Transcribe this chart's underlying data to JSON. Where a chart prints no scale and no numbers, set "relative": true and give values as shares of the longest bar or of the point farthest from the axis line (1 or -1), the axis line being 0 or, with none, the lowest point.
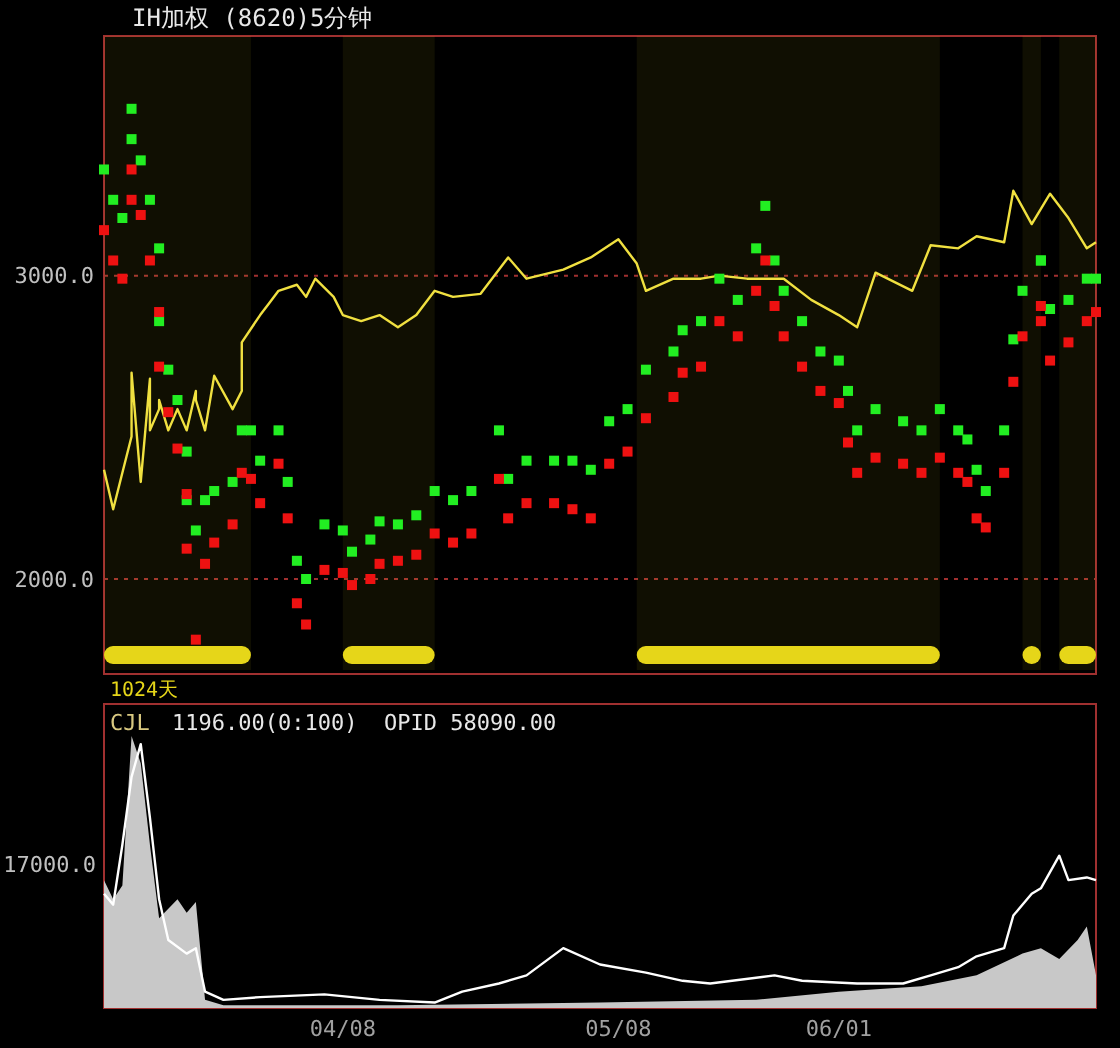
{
  "chart_data": [
    {
      "type": "scatter",
      "title": "IH加权  (8620)5分钟",
      "xlim": [
        "--03-13",
        "--06-29"
      ],
      "ylim": [
        1700,
        3790
      ],
      "yticks": [
        {
          "value": 3000,
          "label": "3000.0"
        },
        {
          "value": 2000,
          "label": "2000.0"
        }
      ],
      "grid": "y",
      "tick_labels": "y",
      "x": [
        "--03-13",
        "--03-14",
        "--03-15",
        "--03-16",
        "--03-16",
        "--03-17",
        "--03-18",
        "--03-19",
        "--03-19",
        "--03-20",
        "--03-21",
        "--03-22",
        "--03-22",
        "--03-23",
        "--03-24",
        "--03-25",
        "--03-27",
        "--03-28",
        "--03-29",
        "--03-30",
        "--04-01",
        "--04-02",
        "--04-03",
        "--04-04",
        "--04-06",
        "--04-08",
        "--04-09",
        "--04-11",
        "--04-12",
        "--04-14",
        "--04-16",
        "--04-18",
        "--04-20",
        "--04-22",
        "--04-25",
        "--04-26",
        "--04-28",
        "--05-01",
        "--05-03",
        "--05-05",
        "--05-07",
        "--05-09",
        "--05-11",
        "--05-14",
        "--05-15",
        "--05-17",
        "--05-19",
        "--05-21",
        "--05-23",
        "--05-24",
        "--05-25",
        "--05-26",
        "--05-28",
        "--05-30",
        "--06-01",
        "--06-02",
        "--06-03",
        "--06-05",
        "--06-08",
        "--06-10",
        "--06-12",
        "--06-14",
        "--06-15",
        "--06-16",
        "--06-17",
        "--06-19",
        "--06-20",
        "--06-21",
        "--06-23",
        "--06-23",
        "--06-24",
        "--06-26",
        "--06-28",
        "--06-29"
      ],
      "series": [
        {
          "type": "line",
          "color": "#f0e040",
          "x": [
            "--03-13",
            "--03-14",
            "--03-15",
            "--03-16",
            "--03-16",
            "--03-17",
            "--03-18",
            "--03-18",
            "--03-19",
            "--03-19",
            "--03-20",
            "--03-21",
            "--03-22",
            "--03-23",
            "--03-23",
            "--03-24",
            "--03-25",
            "--03-27",
            "--03-28",
            "--03-28",
            "--03-30",
            "--03-31",
            "--04-01",
            "--04-03",
            "--04-04",
            "--04-05",
            "--04-07",
            "--04-08",
            "--04-10",
            "--04-12",
            "--04-14",
            "--04-16",
            "--04-18",
            "--04-20",
            "--04-23",
            "--04-26",
            "--04-28",
            "--05-02",
            "--05-05",
            "--05-08",
            "--05-10",
            "--05-11",
            "--05-14",
            "--05-17",
            "--05-19",
            "--05-22",
            "--05-26",
            "--05-29",
            "--06-01",
            "--06-03",
            "--06-05",
            "--06-09",
            "--06-11",
            "--06-14",
            "--06-16",
            "--06-19",
            "--06-20",
            "--06-22",
            "--06-24",
            "--06-26",
            "--06-28",
            "--06-29"
          ],
          "values": [
            2360,
            2230,
            2350,
            2470,
            2680,
            2320,
            2660,
            2490,
            2560,
            2590,
            2490,
            2560,
            2490,
            2620,
            2590,
            2490,
            2670,
            2560,
            2620,
            2780,
            2870,
            2910,
            2950,
            2970,
            2930,
            2990,
            2930,
            2870,
            2850,
            2870,
            2830,
            2870,
            2950,
            2930,
            2940,
            3060,
            2990,
            3020,
            3060,
            3120,
            3040,
            2950,
            2990,
            2990,
            3000,
            2990,
            2990,
            2920,
            2870,
            2830,
            3010,
            2950,
            3100,
            3090,
            3130,
            3110,
            3280,
            3170,
            3270,
            3190,
            3090,
            3110
          ]
        },
        {
          "color": "#22ee22",
          "marker": "square",
          "values": [
            3350,
            3250,
            3190,
            3450,
            3550,
            3380,
            3250,
            3090,
            2850,
            2690,
            2590,
            2420,
            2260,
            2160,
            2260,
            2290,
            2320,
            2490,
            2490,
            2390,
            2490,
            2320,
            2060,
            2000,
            2180,
            2160,
            2090,
            2130,
            2190,
            2180,
            2210,
            2290,
            2260,
            2290,
            2490,
            2330,
            2390,
            2390,
            2390,
            2360,
            2520,
            2560,
            2690,
            2750,
            2820,
            2850,
            2990,
            2920,
            3090,
            3230,
            3050,
            2950,
            2850,
            2750,
            2720,
            2620,
            2490,
            2560,
            2520,
            2490,
            2560,
            2490,
            2460,
            2360,
            2290,
            2490,
            2790,
            2950,
            3050,
            3050,
            2890,
            2920,
            2990,
            2990
          ]
        },
        {
          "color": "#ee1111",
          "marker": "square",
          "values": [
            3150,
            3050,
            2990,
            3250,
            3350,
            3200,
            3050,
            2880,
            2700,
            2550,
            2430,
            2280,
            2100,
            1800,
            2050,
            2120,
            2180,
            2350,
            2330,
            2250,
            2380,
            2200,
            1920,
            1850,
            2030,
            2020,
            1980,
            2000,
            2050,
            2060,
            2080,
            2150,
            2120,
            2150,
            2330,
            2200,
            2250,
            2250,
            2230,
            2200,
            2380,
            2420,
            2530,
            2600,
            2680,
            2700,
            2850,
            2800,
            2950,
            3050,
            2900,
            2800,
            2700,
            2620,
            2580,
            2450,
            2350,
            2400,
            2380,
            2350,
            2400,
            2350,
            2320,
            2200,
            2170,
            2350,
            2650,
            2800,
            2900,
            2850,
            2720,
            2780,
            2850,
            2880
          ]
        }
      ],
      "bands": [
        {
          "axis": "x",
          "from": "--03-13",
          "to": "--03-29",
          "color": "#e6d619"
        },
        {
          "axis": "x",
          "from": "--04-08",
          "to": "--04-18",
          "color": "#e6d619"
        },
        {
          "axis": "x",
          "from": "--05-10",
          "to": "--06-12",
          "color": "#e6d619"
        },
        {
          "axis": "x",
          "from": "--06-21",
          "to": "--06-23",
          "color": "#e6d619"
        },
        {
          "axis": "x",
          "from": "--06-25",
          "to": "--06-29",
          "color": "#e6d619"
        }
      ],
      "annotations": [
        "1024天"
      ]
    },
    {
      "type": "area",
      "relative": true,
      "xlim": [
        "--03-13",
        "--06-29"
      ],
      "xticks": [
        {
          "value": "--04-08",
          "label": "04/08"
        },
        {
          "value": "--05-08",
          "label": "05/08"
        },
        {
          "value": "--06-01",
          "label": "06/01"
        }
      ],
      "tick_labels": "x",
      "series": [
        {
          "color": "#c8c8c8",
          "x": [
            "--03-13",
            "--03-14",
            "--03-15",
            "--03-16",
            "--03-17",
            "--03-18",
            "--03-19",
            "--03-21",
            "--03-22",
            "--03-23",
            "--03-24",
            "--03-26",
            "--04-14",
            "--05-06",
            "--05-23",
            "--06-01",
            "--06-10",
            "--06-16",
            "--06-21",
            "--06-23",
            "--06-25",
            "--06-27",
            "--06-28",
            "--06-29"
          ],
          "values": [
            0.47,
            0.4,
            0.45,
            1,
            0.9,
            0.6,
            0.33,
            0.4,
            0.35,
            0.39,
            0.03,
            0.01,
            0.01,
            0.02,
            0.03,
            0.06,
            0.08,
            0.12,
            0.2,
            0.22,
            0.18,
            0.25,
            0.3,
            0.12
          ]
        },
        {
          "type": "line",
          "color": "#ffffff",
          "x": [
            "--03-13",
            "--03-14",
            "--03-15",
            "--03-16",
            "--03-17",
            "--03-18",
            "--03-19",
            "--03-20",
            "--03-22",
            "--03-23",
            "--03-24",
            "--03-26",
            "--03-30",
            "--04-06",
            "--04-12",
            "--04-18",
            "--04-21",
            "--04-25",
            "--04-28",
            "--05-02",
            "--05-06",
            "--05-11",
            "--05-15",
            "--05-18",
            "--05-25",
            "--05-28",
            "--06-03",
            "--06-08",
            "--06-11",
            "--06-14",
            "--06-16",
            "--06-19",
            "--06-20",
            "--06-22",
            "--06-23",
            "--06-25",
            "--06-26",
            "--06-28",
            "--06-29"
          ],
          "values": [
            0.42,
            0.38,
            0.6,
            0.85,
            0.97,
            0.7,
            0.4,
            0.25,
            0.2,
            0.22,
            0.06,
            0.03,
            0.04,
            0.05,
            0.03,
            0.02,
            0.06,
            0.09,
            0.12,
            0.22,
            0.16,
            0.13,
            0.1,
            0.09,
            0.12,
            0.1,
            0.09,
            0.09,
            0.12,
            0.15,
            0.19,
            0.22,
            0.34,
            0.42,
            0.44,
            0.56,
            0.47,
            0.48,
            0.47
          ]
        }
      ],
      "annotations": [
        "CJL",
        "1196.00(0:100)",
        "OPID 58090.00",
        "17000.0"
      ]
    }
  ]
}
